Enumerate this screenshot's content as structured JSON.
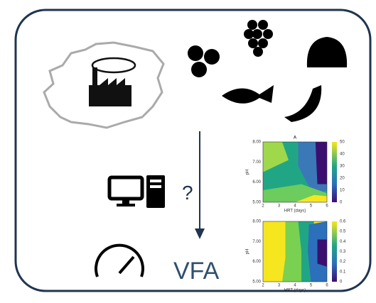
{
  "labels": {
    "question": "?",
    "output": "VFA"
  },
  "plots": [
    {
      "title": "A",
      "y_label": "pH",
      "x_label": "HRT (days)",
      "y_ticks": [
        "8.00",
        "7.00",
        "6.00",
        "5.00"
      ],
      "x_ticks": [
        "2",
        "3",
        "4",
        "5",
        "6"
      ],
      "colorbar_ticks": [
        "50",
        "40",
        "30",
        "20",
        "10",
        "0"
      ]
    },
    {
      "y_label": "pH",
      "x_label": "HRT (days)",
      "y_ticks": [
        "8.00",
        "7.00",
        "6.00",
        "5.00"
      ],
      "x_ticks": [
        "2",
        "3",
        "4",
        "5",
        "6"
      ],
      "colorbar_ticks": [
        "0.6",
        "0.5",
        "0.4",
        "0.3",
        "0.2",
        "0.1",
        "0"
      ]
    }
  ]
}
